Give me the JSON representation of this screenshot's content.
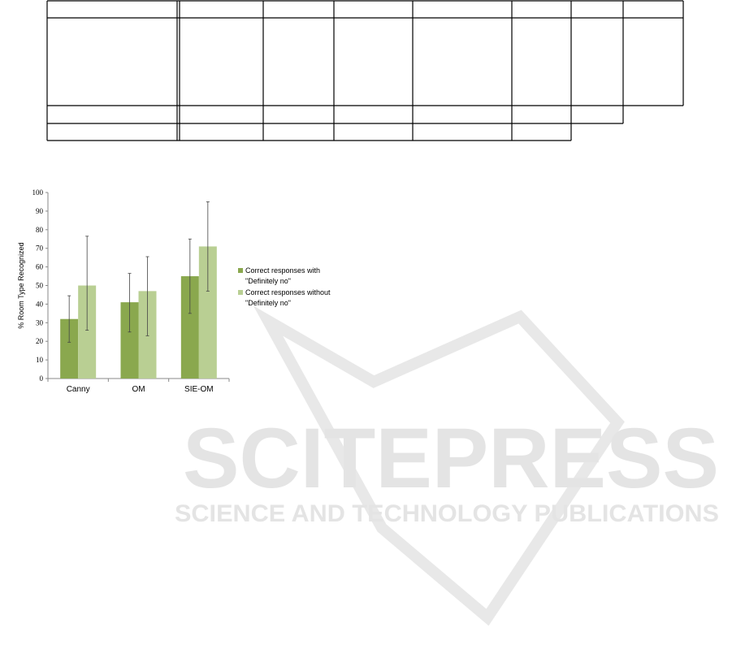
{
  "watermark": {
    "title": "SCITEPRESS",
    "subtitle": "SCIENCE AND TECHNOLOGY PUBLICATIONS"
  },
  "colors": {
    "with": "#8aa84e",
    "without": "#b9cf93",
    "watermark": "#e6e6e6"
  },
  "chart_data": {
    "type": "bar",
    "title": "",
    "xlabel": "",
    "ylabel": "% Room Type Recognized",
    "ylim": [
      0,
      100
    ],
    "yticks": [
      0,
      10,
      20,
      30,
      40,
      50,
      60,
      70,
      80,
      90,
      100
    ],
    "categories": [
      "Canny",
      "OM",
      "SIE-OM"
    ],
    "legend_position": "right",
    "grid": false,
    "series": [
      {
        "name": "Correct responses with \"Definitely no\"",
        "legend_lines": [
          "Correct responses with",
          "\"Definitely no\""
        ],
        "values": [
          32,
          41,
          55
        ],
        "error_low": [
          19.5,
          25,
          35
        ],
        "error_high": [
          44.5,
          56.5,
          75
        ]
      },
      {
        "name": "Correct responses without \"Definitely no\"",
        "legend_lines": [
          "Correct responses without",
          "\"Definitely no\""
        ],
        "values": [
          50,
          47,
          71
        ],
        "error_low": [
          26,
          23,
          47
        ],
        "error_high": [
          76.5,
          65.5,
          95
        ]
      }
    ]
  }
}
